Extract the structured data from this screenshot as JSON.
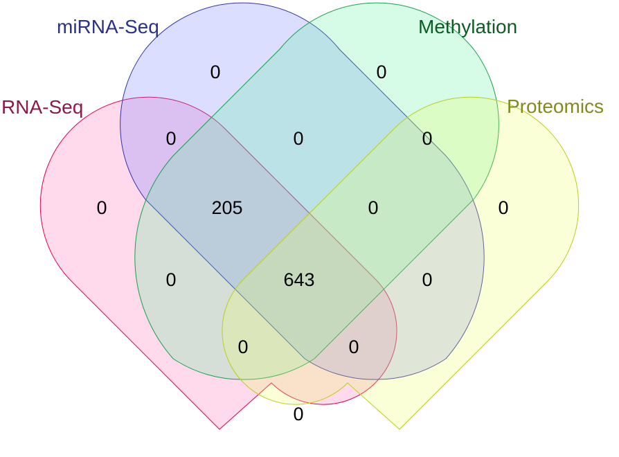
{
  "sets": [
    {
      "key": "rna",
      "name": "RNA-Seq",
      "fill": "#ff69b4",
      "stroke": "#e5004e",
      "label_color": "#8b1a4a"
    },
    {
      "key": "mirna",
      "name": "miRNA-Seq",
      "fill": "#6f7bff",
      "stroke": "#3333aa",
      "label_color": "#2a3288"
    },
    {
      "key": "meth",
      "name": "Methylation",
      "fill": "#5cf09a",
      "stroke": "#15a04a",
      "label_color": "#0c5c24"
    },
    {
      "key": "prot",
      "name": "Proteomics",
      "fill": "#ecff63",
      "stroke": "#b9cf1a",
      "label_color": "#838a1c"
    }
  ],
  "regions": [
    {
      "sets": [
        "mirna"
      ],
      "count": "0"
    },
    {
      "sets": [
        "meth"
      ],
      "count": "0"
    },
    {
      "sets": [
        "rna",
        "mirna"
      ],
      "count": "0"
    },
    {
      "sets": [
        "mirna",
        "meth"
      ],
      "count": "0"
    },
    {
      "sets": [
        "meth",
        "prot"
      ],
      "count": "0"
    },
    {
      "sets": [
        "rna"
      ],
      "count": "0"
    },
    {
      "sets": [
        "rna",
        "mirna",
        "meth"
      ],
      "count": "205"
    },
    {
      "sets": [
        "mirna",
        "meth",
        "prot"
      ],
      "count": "0"
    },
    {
      "sets": [
        "prot"
      ],
      "count": "0"
    },
    {
      "sets": [
        "rna",
        "meth"
      ],
      "count": "0"
    },
    {
      "sets": [
        "rna",
        "mirna",
        "meth",
        "prot"
      ],
      "count": "643"
    },
    {
      "sets": [
        "mirna",
        "prot"
      ],
      "count": "0"
    },
    {
      "sets": [
        "rna",
        "meth",
        "prot"
      ],
      "count": "0"
    },
    {
      "sets": [
        "rna",
        "mirna",
        "prot"
      ],
      "count": "0"
    },
    {
      "sets": [
        "rna",
        "prot"
      ],
      "count": "0"
    }
  ]
}
